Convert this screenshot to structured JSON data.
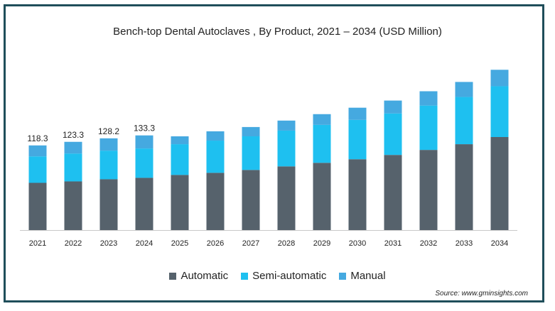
{
  "colors": {
    "automatic": "#56626c",
    "semi_automatic": "#1ec0f0",
    "manual": "#45a9e0",
    "frame": "#1f4e5a",
    "axis": "#c8c8c8"
  },
  "source": "Source: www.gminsights.com",
  "chart_data": {
    "type": "bar",
    "stacked": true,
    "title": "Bench-top Dental Autoclaves , By Product, 2021 – 2034 (USD Million)",
    "xlabel": "",
    "ylabel": "",
    "categories": [
      "2021",
      "2022",
      "2023",
      "2024",
      "2025",
      "2026",
      "2027",
      "2028",
      "2029",
      "2030",
      "2031",
      "2032",
      "2033",
      "2034"
    ],
    "series": [
      {
        "name": "Automatic",
        "color": "#56626c",
        "values": [
          66,
          68,
          71,
          73,
          77,
          80,
          84,
          89,
          94,
          99,
          105,
          112,
          120,
          130
        ]
      },
      {
        "name": "Semi-automatic",
        "color": "#1ec0f0",
        "values": [
          37,
          39,
          40,
          41,
          43,
          45,
          47,
          50,
          53,
          55,
          58,
          62,
          66,
          71
        ]
      },
      {
        "name": "Manual",
        "color": "#45a9e0",
        "values": [
          15.3,
          16.3,
          17.2,
          18.3,
          11,
          13,
          13,
          14,
          15,
          17,
          18,
          20,
          21,
          23
        ]
      }
    ],
    "data_labels": [
      {
        "category": "2021",
        "text": "118.3"
      },
      {
        "category": "2022",
        "text": "123.3"
      },
      {
        "category": "2023",
        "text": "128.2"
      },
      {
        "category": "2024",
        "text": "133.3"
      }
    ],
    "ylim": [
      0,
      260
    ],
    "grid": false,
    "legend": "bottom"
  }
}
